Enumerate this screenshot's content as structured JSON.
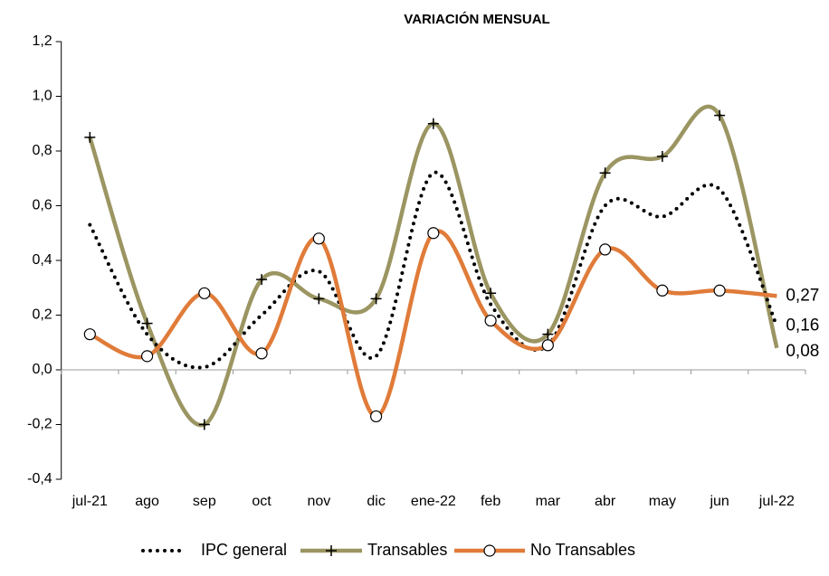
{
  "chart_data": {
    "type": "line",
    "title": "VARIACIÓN MENSUAL",
    "categories": [
      "jul-21",
      "ago",
      "sep",
      "oct",
      "nov",
      "dic",
      "ene-22",
      "feb",
      "mar",
      "abr",
      "may",
      "jun",
      "jul-22"
    ],
    "series": [
      {
        "name": "IPC general",
        "color": "#000000",
        "style": "dotted",
        "values": [
          0.53,
          0.13,
          0.01,
          0.2,
          0.36,
          0.05,
          0.72,
          0.24,
          0.09,
          0.6,
          0.56,
          0.66,
          0.16
        ],
        "value_labels": [
          null,
          null,
          null,
          null,
          null,
          null,
          null,
          null,
          null,
          null,
          null,
          null,
          "0,16"
        ]
      },
      {
        "name": "Transables",
        "color": "#9b9562",
        "marker": "plus",
        "values": [
          0.85,
          0.17,
          -0.2,
          0.33,
          0.26,
          0.26,
          0.9,
          0.28,
          0.13,
          0.72,
          0.78,
          0.93,
          0.08
        ],
        "value_labels": [
          null,
          null,
          null,
          null,
          null,
          null,
          null,
          null,
          null,
          null,
          null,
          null,
          "0,08"
        ]
      },
      {
        "name": "No Transables",
        "color": "#e07b39",
        "marker": "circle",
        "values": [
          0.13,
          0.05,
          0.28,
          0.06,
          0.48,
          -0.17,
          0.5,
          0.18,
          0.09,
          0.44,
          0.29,
          0.29,
          0.27
        ],
        "value_labels": [
          null,
          null,
          null,
          null,
          null,
          null,
          null,
          null,
          null,
          null,
          null,
          null,
          "0,27"
        ]
      }
    ],
    "ylim": [
      -0.4,
      1.2
    ],
    "yticks": [
      {
        "value": -0.4,
        "label": "-0,4"
      },
      {
        "value": -0.2,
        "label": "-0,2"
      },
      {
        "value": 0,
        "label": "0,0"
      },
      {
        "value": 0.2,
        "label": "0,2"
      },
      {
        "value": 0.4,
        "label": "0,4"
      },
      {
        "value": 0.6,
        "label": "0,6"
      },
      {
        "value": 0.8,
        "label": "0,8"
      },
      {
        "value": 1.0,
        "label": "1,0"
      },
      {
        "value": 1.2,
        "label": "1,2"
      }
    ],
    "grid": false,
    "legend": "bottom"
  }
}
